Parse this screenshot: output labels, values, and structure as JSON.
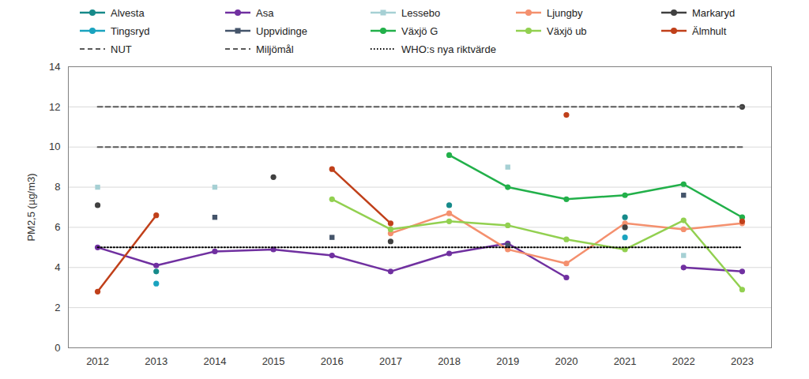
{
  "chart_data": {
    "type": "line",
    "y_label": "PM2,5 (µg/m3)",
    "x": [
      2012,
      2013,
      2014,
      2015,
      2016,
      2017,
      2018,
      2019,
      2020,
      2021,
      2022,
      2023
    ],
    "xlim": [
      2011.5,
      2023.5
    ],
    "xticks": [
      2012,
      2013,
      2014,
      2015,
      2016,
      2017,
      2018,
      2019,
      2020,
      2021,
      2022,
      2023
    ],
    "ylim": [
      0,
      14
    ],
    "yticks": [
      0,
      2,
      4,
      6,
      8,
      10,
      12,
      14
    ],
    "grid": true,
    "legend": "top",
    "series": [
      {
        "name": "Alvesta",
        "color": "#168a8a",
        "marker": "circle",
        "values": [
          null,
          3.8,
          null,
          null,
          null,
          null,
          7.1,
          null,
          null,
          6.5,
          null,
          null
        ]
      },
      {
        "name": "Asa",
        "color": "#7030a0",
        "marker": "circle",
        "values": [
          5.0,
          4.1,
          4.8,
          4.9,
          4.6,
          3.8,
          4.7,
          5.2,
          3.5,
          null,
          4.0,
          3.8
        ]
      },
      {
        "name": "Lessebo",
        "color": "#a6d0d4",
        "marker": "square",
        "values": [
          8.0,
          null,
          8.0,
          null,
          null,
          null,
          null,
          9.0,
          null,
          null,
          4.6,
          null
        ]
      },
      {
        "name": "Ljungby",
        "color": "#f4906e",
        "marker": "circle",
        "values": [
          null,
          null,
          null,
          null,
          null,
          5.7,
          6.7,
          4.9,
          4.2,
          6.2,
          5.9,
          6.2
        ]
      },
      {
        "name": "Markaryd",
        "color": "#404040",
        "marker": "circle",
        "values": [
          7.1,
          null,
          null,
          8.5,
          null,
          5.3,
          null,
          null,
          null,
          6.0,
          null,
          12.0
        ]
      },
      {
        "name": "Tingsryd",
        "color": "#1aa3bf",
        "marker": "circle",
        "values": [
          null,
          3.2,
          null,
          null,
          null,
          null,
          null,
          null,
          null,
          5.5,
          null,
          null
        ]
      },
      {
        "name": "Uppvidinge",
        "color": "#44546a",
        "marker": "square",
        "values": [
          null,
          null,
          6.5,
          null,
          5.5,
          null,
          null,
          5.1,
          null,
          null,
          7.6,
          null
        ]
      },
      {
        "name": "Växjö G",
        "color": "#22b04a",
        "marker": "circle",
        "values": [
          null,
          null,
          null,
          null,
          null,
          null,
          9.6,
          8.0,
          7.4,
          7.6,
          8.15,
          6.5
        ]
      },
      {
        "name": "Växjö ub",
        "color": "#92d050",
        "marker": "circle",
        "values": [
          null,
          null,
          null,
          null,
          7.4,
          5.9,
          6.3,
          6.1,
          5.4,
          4.9,
          6.35,
          2.9
        ]
      },
      {
        "name": "Älmhult",
        "color": "#c0401a",
        "marker": "circle",
        "values": [
          2.8,
          6.6,
          null,
          null,
          8.9,
          6.2,
          null,
          null,
          11.6,
          null,
          null,
          6.3
        ]
      },
      {
        "name": "NUT",
        "color": "#595959",
        "marker": "none",
        "line_style": "dashed",
        "values": [
          12,
          12,
          12,
          12,
          12,
          12,
          12,
          12,
          12,
          12,
          12,
          12
        ]
      },
      {
        "name": "Miljömål",
        "color": "#595959",
        "marker": "none",
        "line_style": "dashed",
        "values": [
          10,
          10,
          10,
          10,
          10,
          10,
          10,
          10,
          10,
          10,
          10,
          10
        ]
      },
      {
        "name": "WHO:s nya riktvärde",
        "color": "#000000",
        "marker": "none",
        "line_style": "dotted",
        "values": [
          5,
          5,
          5,
          5,
          5,
          5,
          5,
          5,
          5,
          5,
          5,
          5
        ]
      }
    ]
  }
}
